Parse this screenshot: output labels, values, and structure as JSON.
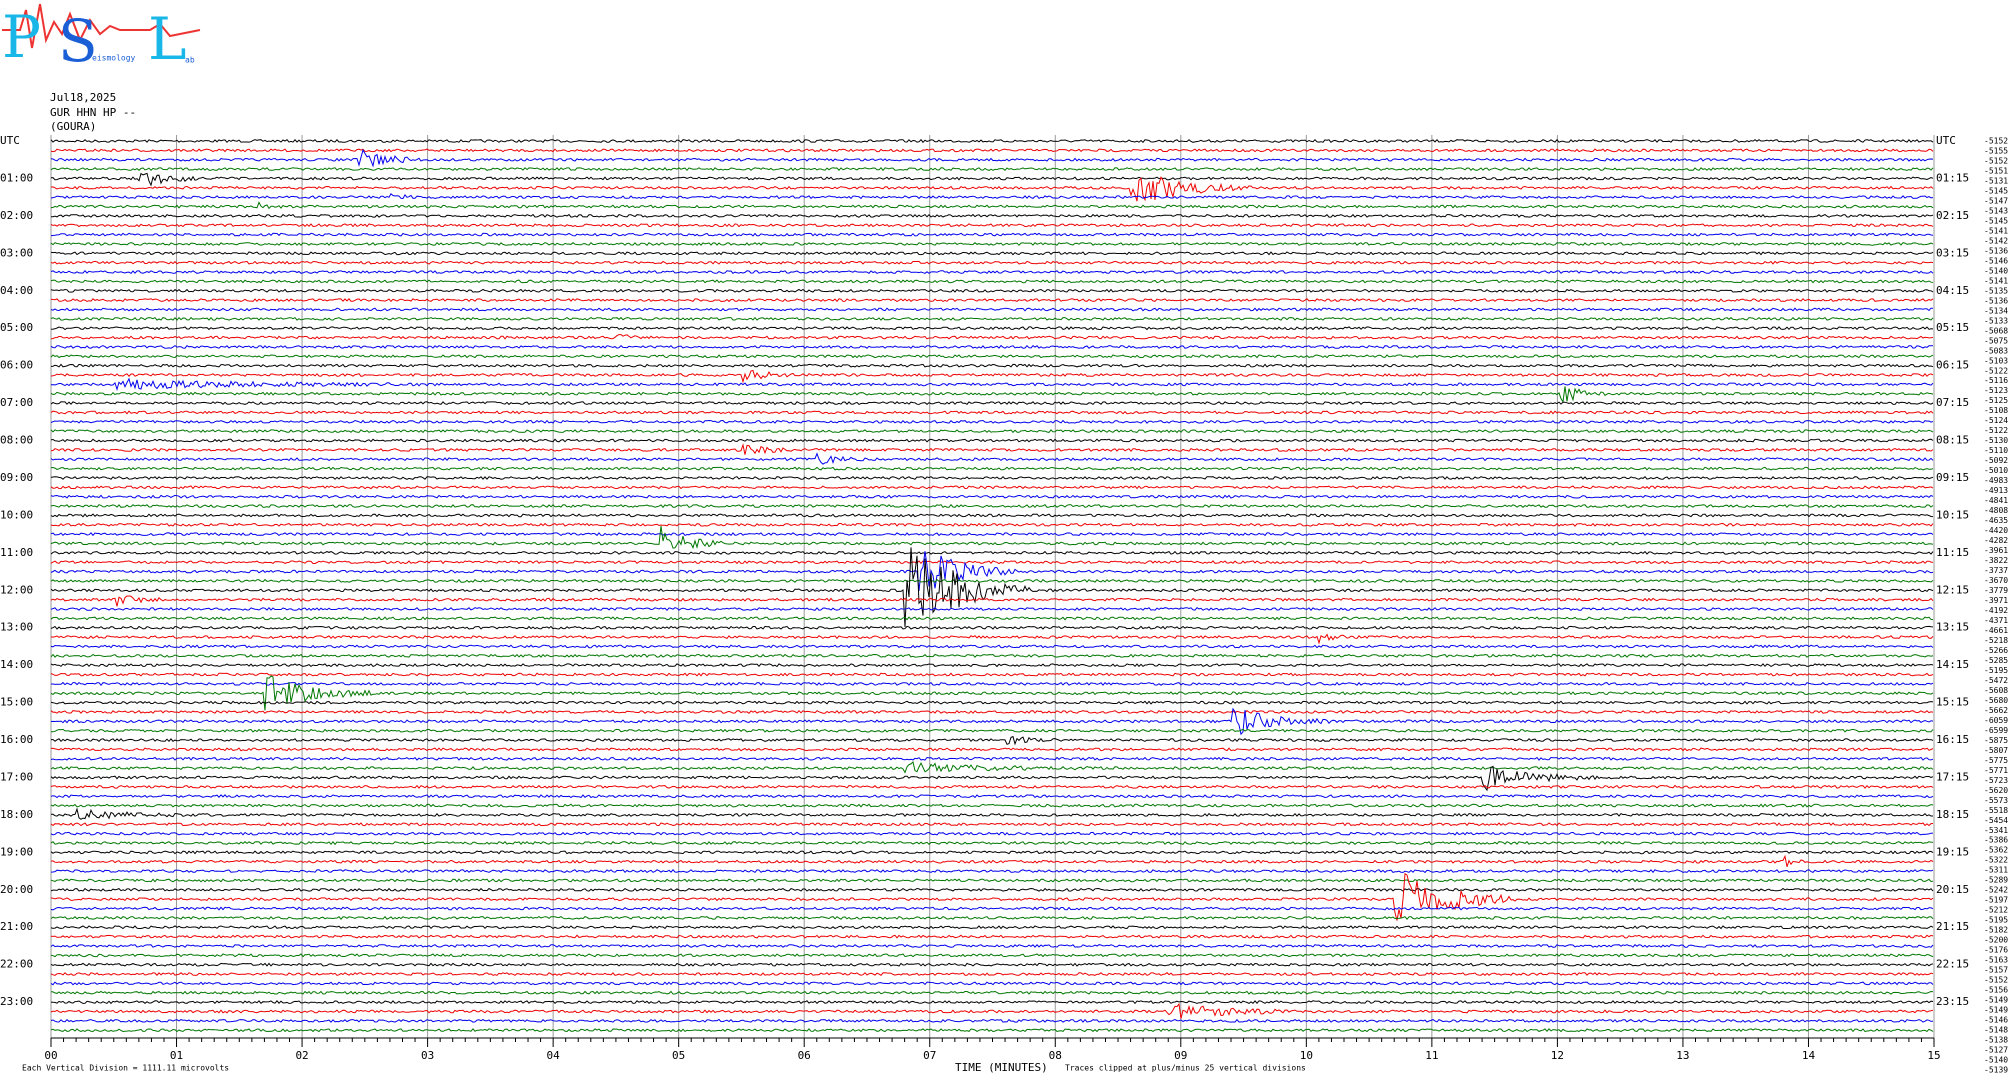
{
  "logo": {
    "letters": [
      "P",
      "S",
      "L"
    ],
    "small": [
      "eismology",
      "ab"
    ]
  },
  "header": {
    "date": "Jul18,2025",
    "station": "GUR HHN HP --",
    "site": "(GOURA)"
  },
  "left_labels": [
    "UTC",
    "01:00",
    "02:00",
    "03:00",
    "04:00",
    "05:00",
    "06:00",
    "07:00",
    "08:00",
    "09:00",
    "10:00",
    "11:00",
    "12:00",
    "13:00",
    "14:00",
    "15:00",
    "16:00",
    "17:00",
    "18:00",
    "19:00",
    "20:00",
    "21:00",
    "22:00",
    "23:00"
  ],
  "right_labels": [
    "UTC",
    "01:15",
    "02:15",
    "03:15",
    "04:15",
    "05:15",
    "06:15",
    "07:15",
    "08:15",
    "09:15",
    "10:15",
    "11:15",
    "12:15",
    "13:15",
    "14:15",
    "15:15",
    "16:15",
    "17:15",
    "18:15",
    "19:15",
    "20:15",
    "21:15",
    "22:15",
    "23:15"
  ],
  "offsets": [
    "-5152",
    "-5155",
    "-5152",
    "-5151",
    "-5131",
    "-5145",
    "-5147",
    "-5143",
    "-5145",
    "-5141",
    "-5142",
    "-5136",
    "-5146",
    "-5140",
    "-5141",
    "-5135",
    "-5136",
    "-5134",
    "-5133",
    "-5068",
    "-5075",
    "-5083",
    "-5103",
    "-5122",
    "-5116",
    "-5123",
    "-5125",
    "-5108",
    "-5124",
    "-5122",
    "-5130",
    "-5110",
    "-5092",
    "-5010",
    "-4983",
    "-4913",
    "-4841",
    "-4808",
    "-4635",
    "-4420",
    "-4282",
    "-3961",
    "-3822",
    "-3737",
    "-3670",
    "-3779",
    "-3971",
    "-4192",
    "-4371",
    "-4661",
    "-5218",
    "-5266",
    "-5285",
    "-5195",
    "-5472",
    "-5608",
    "-5680",
    "-5662",
    "-6059",
    "-6599",
    "-5875",
    "-5807",
    "-5775",
    "-5771",
    "-5723",
    "-5620",
    "-5573",
    "-5518",
    "-5454",
    "-5341",
    "-5386",
    "-5362",
    "-5322",
    "-5311",
    "-5289",
    "-5242",
    "-5197",
    "-5212",
    "-5195",
    "-5182",
    "-5200",
    "-5176",
    "-5163",
    "-5157",
    "-5152",
    "-5156",
    "-5149",
    "-5149",
    "-5146",
    "-5148",
    "-5138",
    "-5127",
    "-5140",
    "-5139"
  ],
  "x_ticks": [
    "00",
    "01",
    "02",
    "03",
    "04",
    "05",
    "06",
    "07",
    "08",
    "09",
    "10",
    "11",
    "12",
    "13",
    "14",
    "15"
  ],
  "footer": {
    "scale": "Each Vertical Division = 1111.11 microvolts",
    "x_title": "TIME (MINUTES)",
    "clip": "Traces clipped at plus/minus 25 vertical divisions"
  }
}
